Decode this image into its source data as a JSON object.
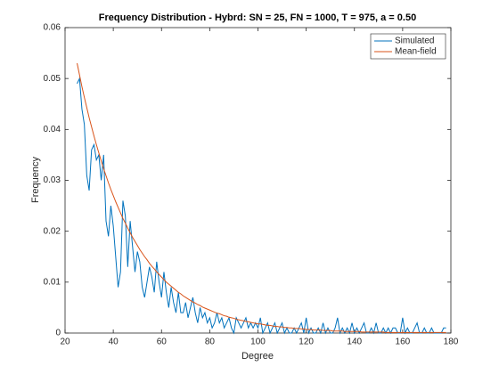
{
  "chart_data": {
    "type": "line",
    "title": "Frequency Distribution - Hybrd: SN = 25, FN = 1000, T = 975, a = 0.50",
    "xlabel": "Degree",
    "ylabel": "Frequency",
    "xlim": [
      20,
      180
    ],
    "xticks": [
      20,
      40,
      60,
      80,
      100,
      120,
      140,
      160,
      180
    ],
    "ylim": [
      0,
      0.06
    ],
    "yticks": [
      0,
      0.01,
      0.02,
      0.03,
      0.04,
      0.05,
      0.06
    ],
    "legend": "top-right",
    "grid": false,
    "x": [
      25,
      26,
      27,
      28,
      29,
      30,
      31,
      32,
      33,
      34,
      35,
      36,
      37,
      38,
      39,
      40,
      41,
      42,
      43,
      44,
      45,
      46,
      47,
      48,
      49,
      50,
      51,
      52,
      53,
      54,
      55,
      56,
      57,
      58,
      59,
      60,
      61,
      62,
      63,
      64,
      65,
      66,
      67,
      68,
      69,
      70,
      71,
      72,
      73,
      74,
      75,
      76,
      77,
      78,
      79,
      80,
      81,
      82,
      83,
      84,
      85,
      86,
      87,
      88,
      89,
      90,
      91,
      92,
      93,
      94,
      95,
      96,
      97,
      98,
      99,
      100,
      101,
      102,
      103,
      104,
      105,
      106,
      107,
      108,
      109,
      110,
      111,
      112,
      113,
      114,
      115,
      116,
      117,
      118,
      119,
      120,
      121,
      122,
      123,
      124,
      125,
      126,
      127,
      128,
      129,
      130,
      131,
      132,
      133,
      134,
      135,
      136,
      137,
      138,
      139,
      140,
      141,
      142,
      143,
      144,
      145,
      146,
      147,
      148,
      149,
      150,
      151,
      152,
      153,
      154,
      155,
      156,
      157,
      158,
      159,
      160,
      161,
      162,
      163,
      164,
      165,
      166,
      167,
      168,
      169,
      170,
      171,
      172,
      173,
      174,
      175,
      176,
      177,
      178
    ],
    "series": [
      {
        "name": "Simulated",
        "color": "#0072bd",
        "values": [
          0.049,
          0.05,
          0.044,
          0.041,
          0.031,
          0.028,
          0.036,
          0.037,
          0.034,
          0.035,
          0.03,
          0.035,
          0.022,
          0.019,
          0.025,
          0.021,
          0.015,
          0.009,
          0.012,
          0.026,
          0.023,
          0.013,
          0.022,
          0.017,
          0.012,
          0.016,
          0.014,
          0.009,
          0.007,
          0.01,
          0.013,
          0.011,
          0.008,
          0.014,
          0.01,
          0.007,
          0.012,
          0.008,
          0.005,
          0.009,
          0.006,
          0.004,
          0.008,
          0.004,
          0.004,
          0.006,
          0.003,
          0.005,
          0.007,
          0.004,
          0.002,
          0.005,
          0.003,
          0.004,
          0.002,
          0.003,
          0.001,
          0.002,
          0.004,
          0.002,
          0.003,
          0.001,
          0.002,
          0.003,
          0.001,
          0,
          0.003,
          0.002,
          0.001,
          0.002,
          0.003,
          0.001,
          0.002,
          0.001,
          0.002,
          0.001,
          0.003,
          0,
          0.001,
          0.002,
          0,
          0.001,
          0.002,
          0,
          0.001,
          0.002,
          0,
          0.001,
          0,
          0,
          0.001,
          0,
          0.001,
          0.002,
          0,
          0.003,
          0,
          0.001,
          0,
          0,
          0.001,
          0,
          0.002,
          0,
          0.001,
          0,
          0,
          0.001,
          0.003,
          0,
          0.001,
          0,
          0.001,
          0,
          0.002,
          0,
          0.001,
          0,
          0.001,
          0.002,
          0,
          0,
          0.001,
          0,
          0.002,
          0,
          0,
          0.001,
          0,
          0.001,
          0,
          0.001,
          0.001,
          0,
          0,
          0.003,
          0,
          0.001,
          0,
          0,
          0.001,
          0.002,
          0,
          0,
          0.001,
          0,
          0,
          0.001,
          0,
          0,
          0,
          0,
          0.001,
          0.001
        ]
      },
      {
        "name": "Mean-field",
        "color": "#d95319",
        "values": [
          0.053,
          0.0507,
          0.0484,
          0.0463,
          0.0443,
          0.0423,
          0.0405,
          0.0387,
          0.037,
          0.0354,
          0.0338,
          0.0323,
          0.0309,
          0.0295,
          0.0282,
          0.027,
          0.0258,
          0.0247,
          0.0236,
          0.0225,
          0.0216,
          0.0206,
          0.0197,
          0.0188,
          0.018,
          0.0172,
          0.0164,
          0.0157,
          0.015,
          0.0144,
          0.0137,
          0.0131,
          0.0126,
          0.012,
          0.0115,
          0.011,
          0.0105,
          0.01,
          0.0096,
          0.0092,
          0.0088,
          0.0084,
          0.008,
          0.0077,
          0.0073,
          0.007,
          0.0067,
          0.0064,
          0.0061,
          0.0059,
          0.0056,
          0.0054,
          0.0051,
          0.0049,
          0.0047,
          0.0045,
          0.0043,
          0.0041,
          0.0039,
          0.0038,
          0.0036,
          0.0034,
          0.0033,
          0.0031,
          0.003,
          0.0029,
          0.0027,
          0.0026,
          0.0025,
          0.0024,
          0.0023,
          0.0022,
          0.0021,
          0.002,
          0.0019,
          0.0018,
          0.0018,
          0.0017,
          0.0016,
          0.0015,
          0.0015,
          0.0014,
          0.0013,
          0.0013,
          0.0012,
          0.0012,
          0.0011,
          0.0011,
          0.001,
          0.001,
          0.0009,
          0.0009,
          0.0009,
          0.0008,
          0.0008,
          0.0007,
          0.0007,
          0.0007,
          0.0006,
          0.0006,
          0.0006,
          0.0006,
          0.0005,
          0.0005,
          0.0005,
          0.0005,
          0.0004,
          0.0004,
          0.0004,
          0.0004,
          0.0004,
          0.0003,
          0.0003,
          0.0003,
          0.0003,
          0.0003,
          0.0003,
          0.0003,
          0.0002,
          0.0002,
          0.0002,
          0.0002,
          0.0002,
          0.0002,
          0.0002,
          0.0002,
          0.0002,
          0.0002,
          0.0001,
          0.0001,
          0.0001,
          0.0001,
          0.0001,
          0.0001,
          0.0001,
          0.0001,
          0.0001,
          0.0001,
          0.0001,
          0.0001,
          0.0001,
          0.0001,
          0.0001,
          0.0001,
          0.0001,
          0.0001,
          0.0001,
          0.0001,
          0.0001,
          0.0001,
          0.0001,
          0.0001,
          0.0001,
          0.0001
        ]
      }
    ]
  }
}
